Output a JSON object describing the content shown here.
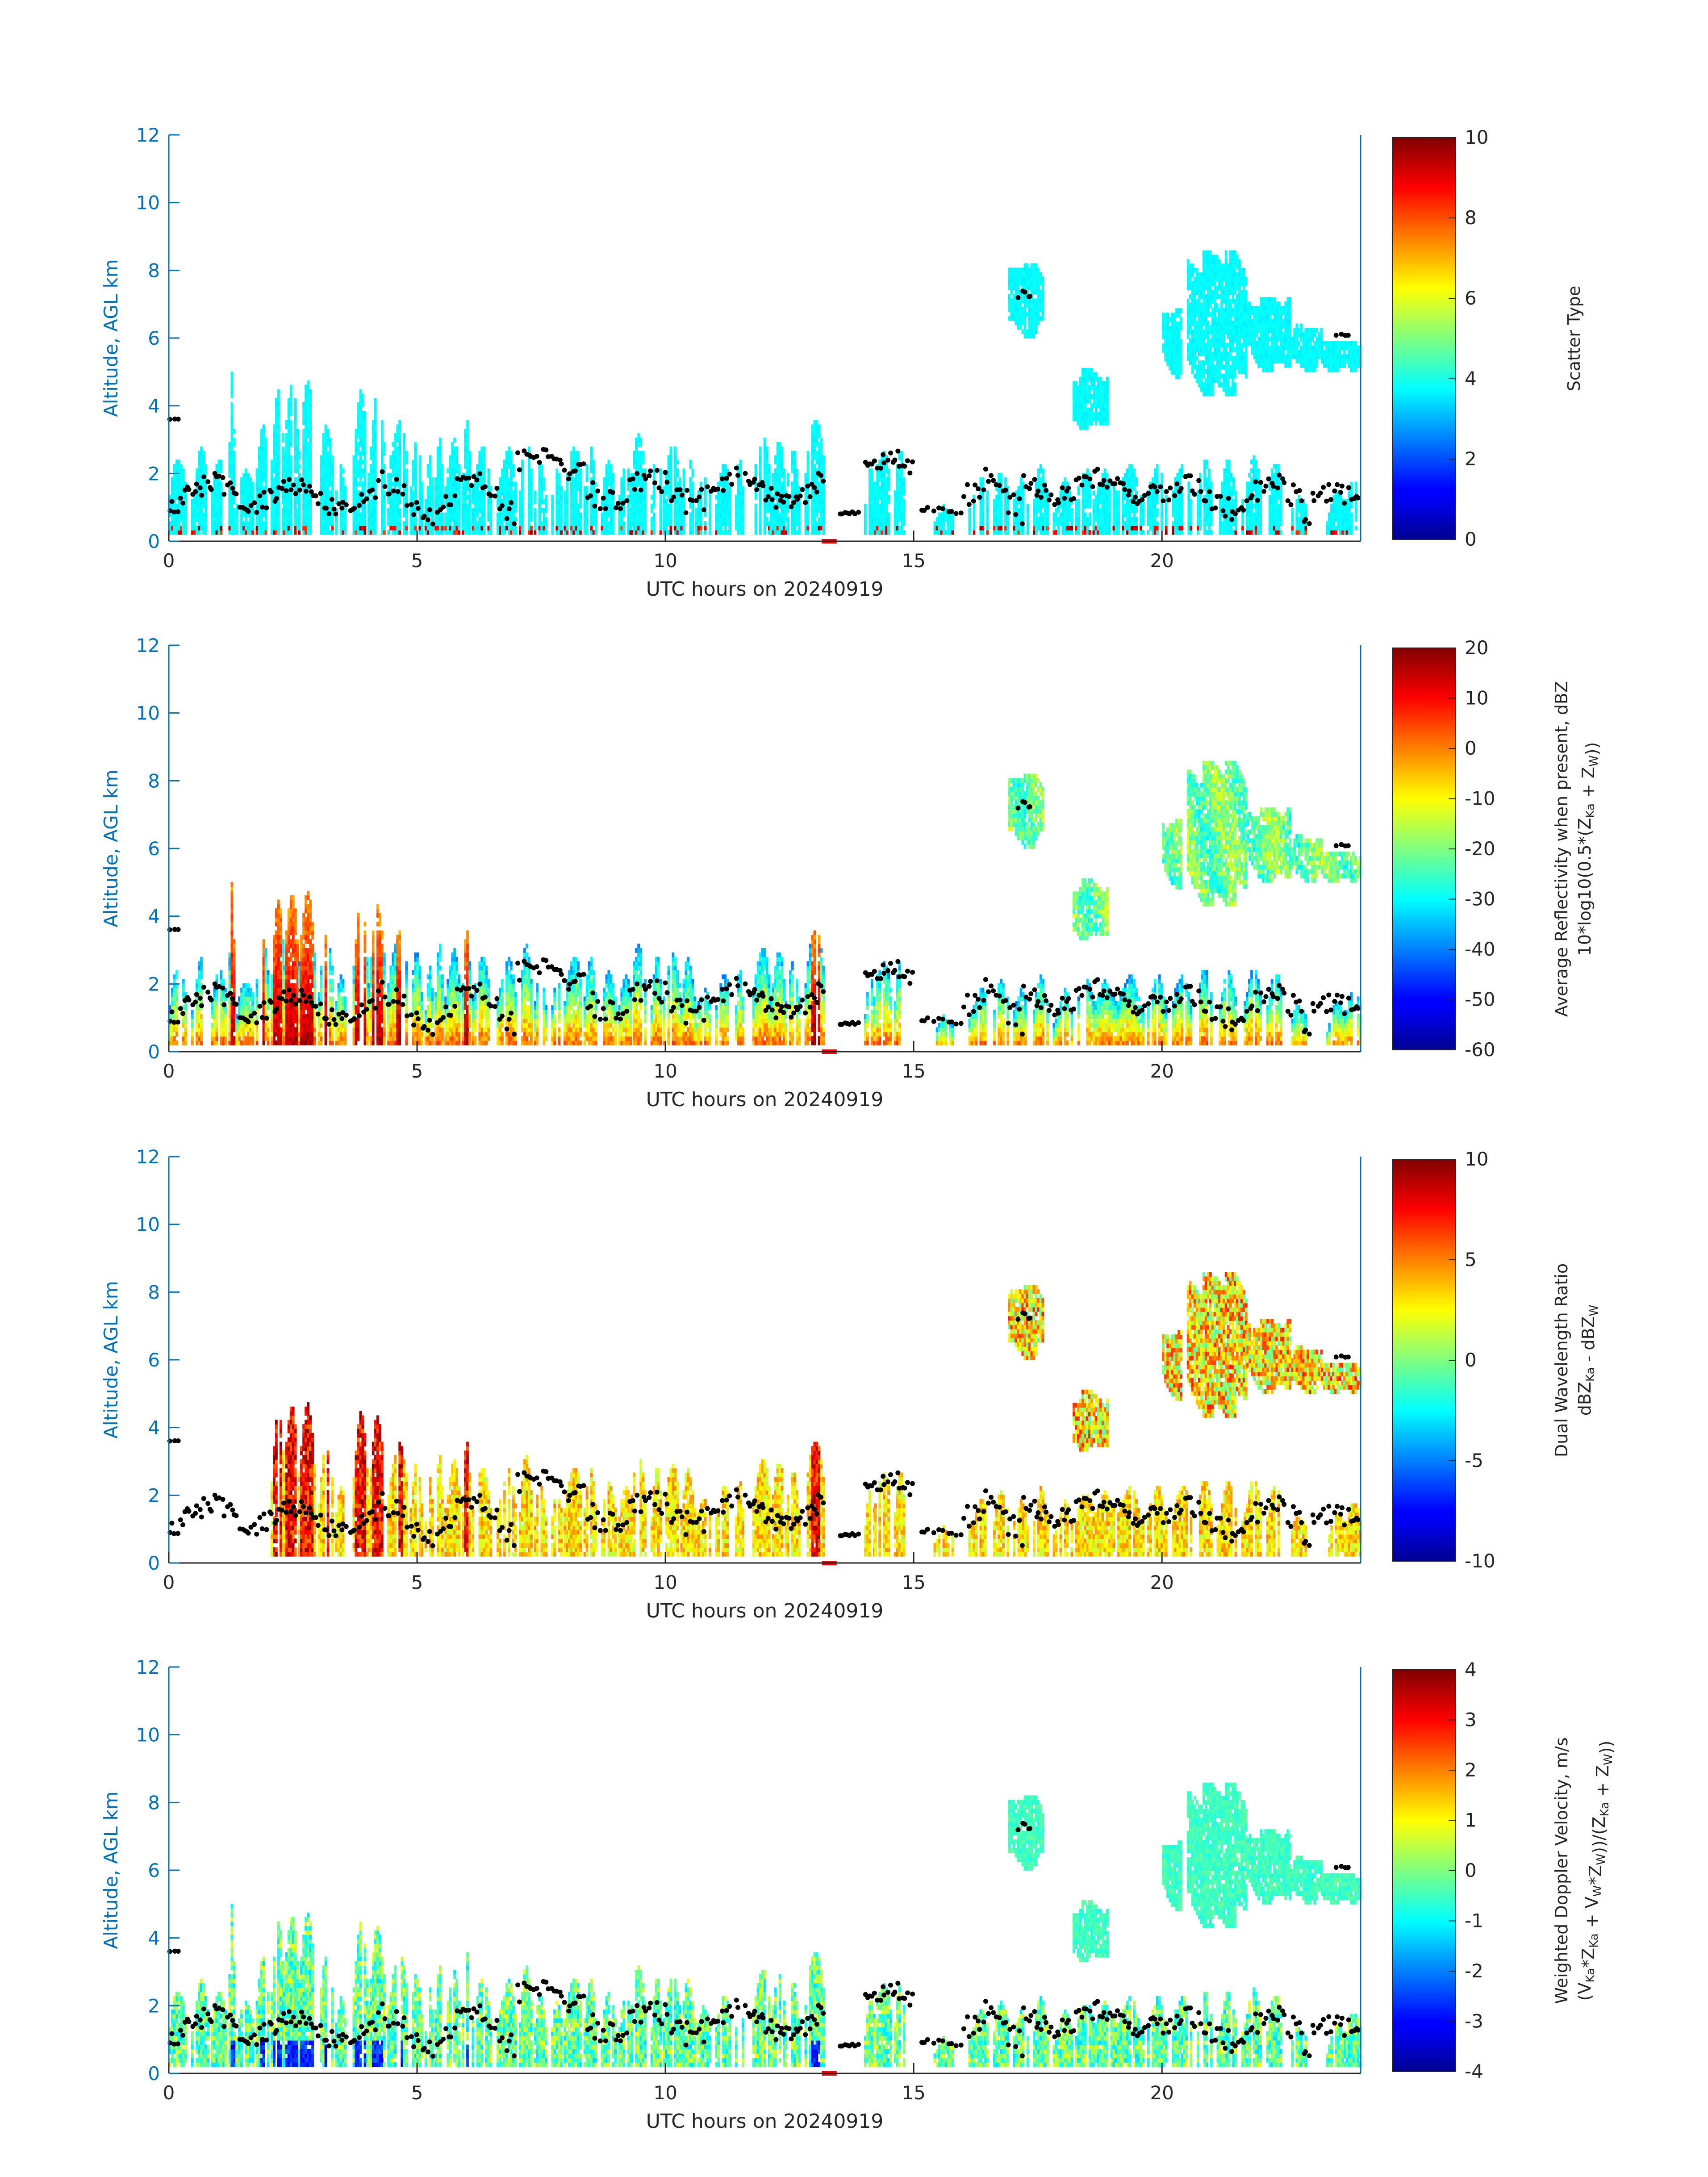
{
  "figure": {
    "colors": {
      "axis_blue": "#0072bd",
      "text_dark": "#262626",
      "dot": "#000000",
      "gap_marker": "#ff0000"
    }
  },
  "chart_data": [
    {
      "type": "heatmap",
      "title": "",
      "xlabel": "UTC hours on 20240919",
      "ylabel": "Altitude, AGL km",
      "xlim": [
        0,
        24
      ],
      "ylim": [
        0,
        12
      ],
      "xticks": [
        0,
        5,
        10,
        15,
        20
      ],
      "yticks": [
        0,
        2,
        4,
        6,
        8,
        10,
        12
      ],
      "colorbar": {
        "colormap": "jet",
        "clim": [
          0,
          10
        ],
        "ticks": [
          0,
          2,
          4,
          6,
          8,
          10
        ],
        "label": "Scatter Type",
        "label2": ""
      },
      "mode": "scatter_type"
    },
    {
      "type": "heatmap",
      "title": "",
      "xlabel": "UTC hours on 20240919",
      "ylabel": "Altitude, AGL km",
      "xlim": [
        0,
        24
      ],
      "ylim": [
        0,
        12
      ],
      "xticks": [
        0,
        5,
        10,
        15,
        20
      ],
      "yticks": [
        0,
        2,
        4,
        6,
        8,
        10,
        12
      ],
      "colorbar": {
        "colormap": "jet",
        "clim": [
          -60,
          20
        ],
        "ticks": [
          -60,
          -50,
          -40,
          -30,
          -20,
          -10,
          0,
          10,
          20
        ],
        "label": "Average Reflectivity when present, dBZ",
        "label2": "10*log10(0.5*(ZKa + ZW))"
      },
      "mode": "reflectivity"
    },
    {
      "type": "heatmap",
      "title": "",
      "xlabel": "UTC hours on 20240919",
      "ylabel": "Altitude, AGL km",
      "xlim": [
        0,
        24
      ],
      "ylim": [
        0,
        12
      ],
      "xticks": [
        0,
        5,
        10,
        15,
        20
      ],
      "yticks": [
        0,
        2,
        4,
        6,
        8,
        10,
        12
      ],
      "colorbar": {
        "colormap": "jet",
        "clim": [
          -10,
          10
        ],
        "ticks": [
          -10,
          -5,
          0,
          5,
          10
        ],
        "label": "Dual Wavelength Ratio",
        "label2": "dBZKa - dBZW"
      },
      "mode": "dwr"
    },
    {
      "type": "heatmap",
      "title": "",
      "xlabel": "UTC hours on 20240919",
      "ylabel": "Altitude, AGL km",
      "xlim": [
        0,
        24
      ],
      "ylim": [
        0,
        12
      ],
      "xticks": [
        0,
        5,
        10,
        15,
        20
      ],
      "yticks": [
        0,
        2,
        4,
        6,
        8,
        10,
        12
      ],
      "colorbar": {
        "colormap": "jet",
        "clim": [
          -4,
          4
        ],
        "ticks": [
          -4,
          -3,
          -2,
          -1,
          0,
          1,
          2,
          3,
          4
        ],
        "label": "Weighted Doppler Velocity, m/s",
        "label2": "(VKa*ZKa + VW*ZW))/(ZKa + ZW))"
      },
      "mode": "velocity"
    }
  ],
  "cloud_field": {
    "low_columns": [
      [
        0.0,
        0.35,
        2.3
      ],
      [
        0.45,
        0.8,
        2.5
      ],
      [
        0.85,
        1.15,
        2.6
      ],
      [
        1.2,
        1.3,
        4.8
      ],
      [
        1.35,
        1.7,
        2.2
      ],
      [
        1.75,
        2.0,
        3.5
      ],
      [
        2.05,
        2.3,
        4.3
      ],
      [
        2.3,
        2.6,
        4.8
      ],
      [
        2.6,
        2.95,
        4.5
      ],
      [
        3.0,
        3.3,
        3.3
      ],
      [
        3.35,
        3.55,
        2.5
      ],
      [
        3.7,
        4.0,
        4.3
      ],
      [
        4.0,
        4.35,
        4.1
      ],
      [
        4.4,
        4.8,
        3.6
      ],
      [
        4.85,
        5.1,
        2.9
      ],
      [
        5.15,
        5.3,
        2.3
      ],
      [
        5.35,
        5.5,
        3.3
      ],
      [
        5.55,
        5.85,
        2.8
      ],
      [
        5.9,
        6.05,
        3.8
      ],
      [
        6.1,
        6.5,
        2.6
      ],
      [
        6.6,
        7.0,
        2.5
      ],
      [
        7.05,
        7.3,
        3.1
      ],
      [
        7.35,
        7.6,
        2.3
      ],
      [
        7.7,
        7.9,
        2.0
      ],
      [
        7.95,
        8.3,
        2.9
      ],
      [
        8.35,
        8.6,
        2.7
      ],
      [
        8.7,
        9.0,
        2.2
      ],
      [
        9.05,
        9.3,
        2.4
      ],
      [
        9.3,
        9.6,
        3.1
      ],
      [
        9.7,
        9.9,
        2.7
      ],
      [
        9.95,
        10.3,
        3.0
      ],
      [
        10.3,
        10.6,
        2.5
      ],
      [
        10.6,
        10.9,
        1.9
      ],
      [
        11.0,
        11.3,
        2.4
      ],
      [
        11.4,
        11.55,
        2.2
      ],
      [
        11.75,
        12.1,
        2.9
      ],
      [
        12.1,
        12.4,
        3.0
      ],
      [
        12.4,
        12.7,
        2.5
      ],
      [
        12.8,
        13.2,
        3.5
      ],
      [
        14.0,
        14.2,
        2.1
      ],
      [
        14.2,
        14.55,
        2.8
      ],
      [
        14.6,
        14.8,
        2.5
      ],
      [
        15.4,
        15.8,
        1.1
      ],
      [
        16.1,
        16.5,
        1.8
      ],
      [
        16.6,
        16.9,
        2.3
      ],
      [
        17.0,
        17.3,
        1.8
      ],
      [
        17.4,
        17.7,
        2.0
      ],
      [
        17.8,
        18.2,
        1.6
      ],
      [
        18.25,
        18.6,
        2.2
      ],
      [
        18.6,
        19.1,
        2.1
      ],
      [
        19.1,
        19.6,
        2.2
      ],
      [
        19.7,
        20.1,
        2.2
      ],
      [
        20.2,
        20.6,
        2.2
      ],
      [
        20.7,
        21.0,
        2.3
      ],
      [
        21.1,
        21.5,
        2.2
      ],
      [
        21.6,
        22.0,
        2.3
      ],
      [
        22.1,
        22.4,
        2.5
      ],
      [
        22.6,
        22.9,
        1.5
      ],
      [
        23.3,
        23.7,
        1.4
      ],
      [
        23.7,
        24.0,
        2.0
      ]
    ],
    "upper_blobs": [
      [
        16.9,
        17.6,
        6.0,
        8.2
      ],
      [
        18.2,
        18.9,
        3.3,
        5.0
      ],
      [
        20.0,
        20.4,
        4.8,
        6.8
      ],
      [
        20.5,
        21.7,
        4.3,
        8.5
      ],
      [
        21.7,
        22.6,
        5.0,
        7.2
      ],
      [
        22.6,
        23.2,
        5.0,
        6.3
      ],
      [
        23.2,
        24.0,
        5.0,
        5.9
      ]
    ],
    "gap": [
      13.3,
      14.0
    ],
    "gap_marker": [
      13.15,
      13.45
    ]
  },
  "dots": {
    "segments": [
      [
        0.0,
        0.25,
        3.6,
        0.05,
        3,
        2
      ],
      [
        0.0,
        3.5,
        1.4,
        0.55,
        70,
        11
      ],
      [
        3.5,
        7.0,
        1.3,
        0.7,
        60,
        23
      ],
      [
        7.0,
        8.4,
        2.3,
        0.45,
        25,
        37
      ],
      [
        8.4,
        11.5,
        1.5,
        0.6,
        55,
        41
      ],
      [
        11.6,
        13.2,
        1.5,
        0.55,
        35,
        53
      ],
      [
        13.5,
        13.9,
        0.9,
        0.1,
        8,
        61
      ],
      [
        14.0,
        15.0,
        2.2,
        0.5,
        20,
        67
      ],
      [
        15.1,
        16.0,
        0.9,
        0.1,
        10,
        71
      ],
      [
        16.0,
        17.2,
        1.3,
        0.7,
        22,
        79
      ],
      [
        17.2,
        20.0,
        1.6,
        0.45,
        55,
        83
      ],
      [
        20.0,
        23.0,
        1.3,
        0.7,
        55,
        89
      ],
      [
        23.0,
        24.0,
        1.2,
        0.45,
        18,
        97
      ],
      [
        17.1,
        17.4,
        7.2,
        0.2,
        5,
        101
      ],
      [
        23.5,
        23.8,
        6.0,
        0.1,
        4,
        103
      ]
    ]
  }
}
